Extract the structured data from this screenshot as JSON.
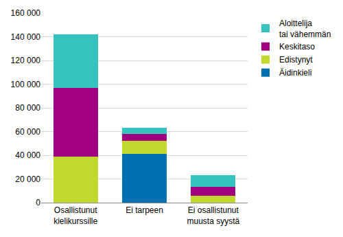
{
  "chart_data": {
    "type": "bar",
    "stacked": true,
    "categories": [
      "Osallistunut\nkielikurssille",
      "Ei tarpeen",
      "Ei osallistunut\nmuusta syystä"
    ],
    "series": [
      {
        "name": "Äidinkieli",
        "color": "#0070b0",
        "values": [
          0,
          41000,
          0
        ]
      },
      {
        "name": "Edistynyt",
        "color": "#c3d82e",
        "values": [
          39000,
          11000,
          6000
        ]
      },
      {
        "name": "Keskitaso",
        "color": "#a0007f",
        "values": [
          58000,
          6000,
          7500
        ]
      },
      {
        "name": "Aloittelija\ntai vähemmän",
        "color": "#36c3c0",
        "values": [
          45000,
          5000,
          9500
        ]
      }
    ],
    "ylim": [
      0,
      160000
    ],
    "yticks": [
      0,
      {
        "value": 20000,
        "label": "20 000"
      },
      {
        "value": 40000,
        "label": "40 000"
      },
      {
        "value": 60000,
        "label": "60 000"
      },
      {
        "value": 80000,
        "label": "80 000"
      },
      {
        "value": 100000,
        "label": "100 000"
      },
      {
        "value": 120000,
        "label": "120 000"
      },
      {
        "value": 140000,
        "label": "140 000"
      },
      {
        "value": 160000,
        "label": "160 000"
      }
    ],
    "grid": true,
    "legend": "top-right"
  }
}
